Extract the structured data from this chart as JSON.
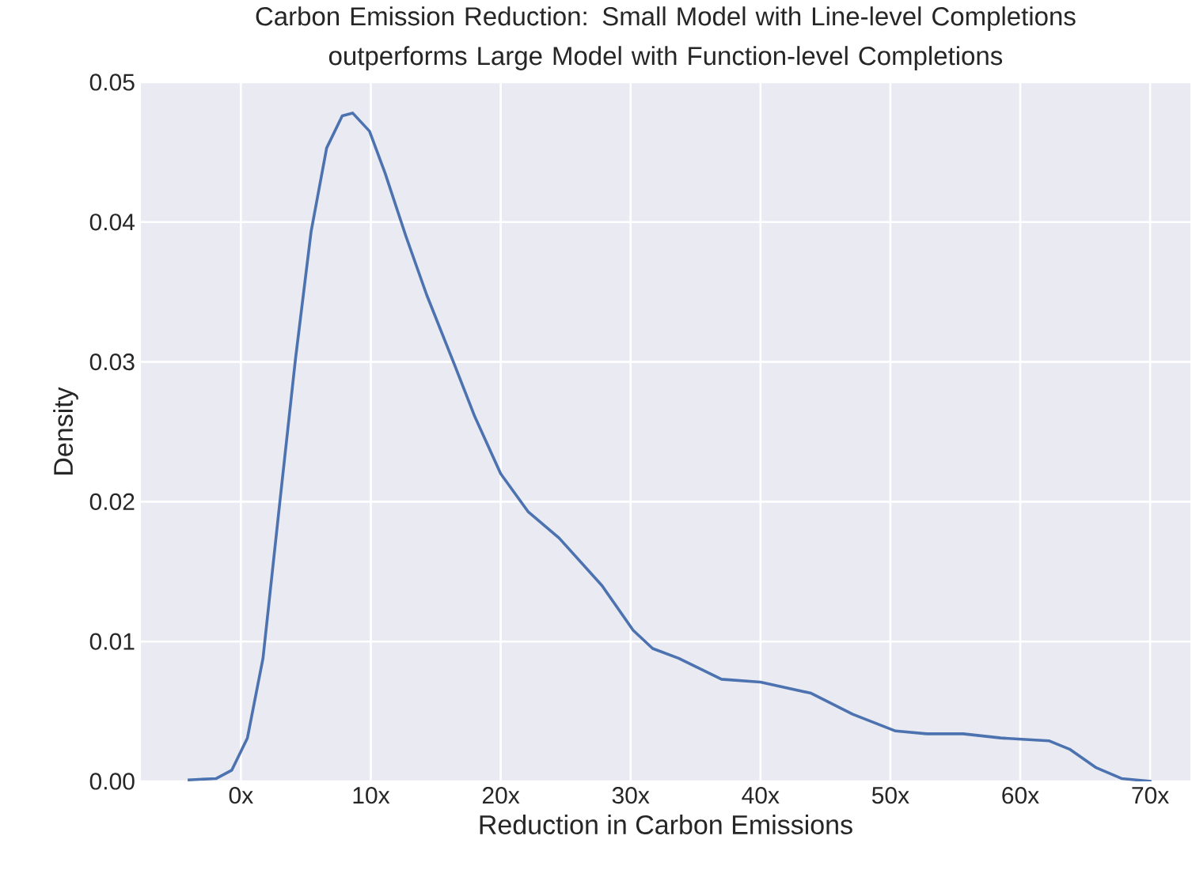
{
  "chart_data": {
    "type": "line",
    "title": "Carbon Emission Reduction: Small Model with Line-level Completions outperforms Large Model with Function-level Completions",
    "xlabel": "Reduction in Carbon Emissions",
    "ylabel": "Density",
    "x": [
      -4.1,
      -1.9,
      -0.7,
      0.5,
      1.7,
      3.0,
      4.2,
      5.4,
      6.6,
      7.8,
      8.6,
      9.9,
      11.1,
      12.7,
      14.3,
      16.4,
      18.0,
      20.0,
      22.1,
      24.5,
      27.8,
      30.2,
      31.7,
      33.7,
      37.0,
      40.0,
      43.9,
      47.1,
      50.4,
      52.8,
      55.6,
      58.5,
      62.2,
      63.8,
      65.8,
      67.8,
      70.1
    ],
    "series": [
      {
        "color": "#4c72b0",
        "values": [
          0.0001,
          0.0002,
          0.0008,
          0.0031,
          0.0088,
          0.02,
          0.0302,
          0.0393,
          0.0453,
          0.0476,
          0.0478,
          0.0465,
          0.0435,
          0.039,
          0.0348,
          0.0299,
          0.0261,
          0.022,
          0.0193,
          0.0174,
          0.014,
          0.0108,
          0.0095,
          0.0088,
          0.0073,
          0.0071,
          0.0063,
          0.0048,
          0.0036,
          0.0034,
          0.0034,
          0.0031,
          0.0029,
          0.0023,
          0.001,
          0.0002,
          0.0
        ]
      }
    ],
    "xlim": [
      -7.7,
      73.1
    ],
    "ylim": [
      0,
      0.05
    ],
    "xticks": [
      {
        "value": 0,
        "label": "0x"
      },
      {
        "value": 10,
        "label": "10x"
      },
      {
        "value": 20,
        "label": "20x"
      },
      {
        "value": 30,
        "label": "30x"
      },
      {
        "value": 40,
        "label": "40x"
      },
      {
        "value": 50,
        "label": "50x"
      },
      {
        "value": 60,
        "label": "60x"
      },
      {
        "value": 70,
        "label": "70x"
      }
    ],
    "yticks": [
      {
        "value": 0,
        "label": "0.00"
      },
      {
        "value": 0.01,
        "label": "0.01"
      },
      {
        "value": 0.02,
        "label": "0.02"
      },
      {
        "value": 0.03,
        "label": "0.03"
      },
      {
        "value": 0.04,
        "label": "0.04"
      },
      {
        "value": 0.05,
        "label": "0.05"
      }
    ],
    "grid": true
  }
}
